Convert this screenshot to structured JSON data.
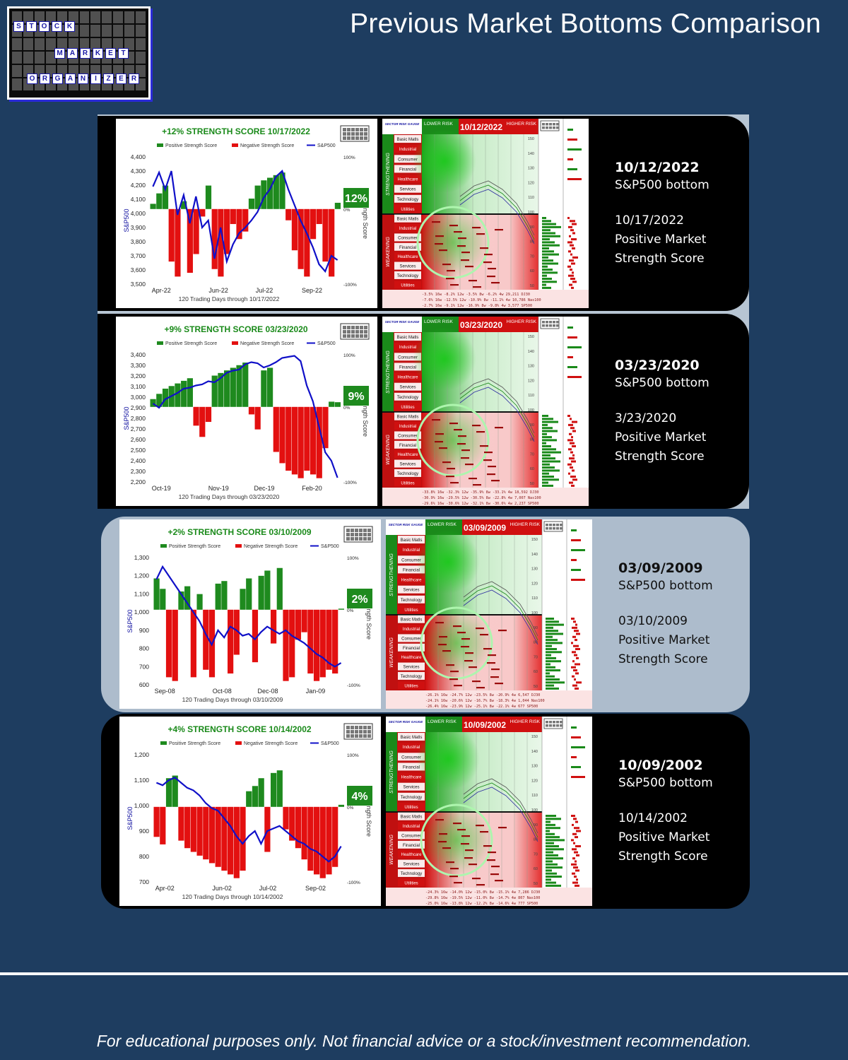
{
  "header": {
    "title": "Previous Market Bottoms Comparison"
  },
  "logo": {
    "words": [
      "STOCK",
      "MARKET",
      "ORGANIZER"
    ]
  },
  "colors": {
    "positive": "#1e8a1e",
    "negative": "#e31010",
    "line": "#1010c8",
    "title_green": "#1a8a1a",
    "background": "#1e3d60"
  },
  "panels": [
    {
      "theme": "dark",
      "bottom_date": "10/12/2022",
      "bottom_label": "S&P500 bottom",
      "score_date": "10/17/2022",
      "score_line1": "Positive Market",
      "score_line2": "Strength Score",
      "chart_data": {
        "type": "bar+line",
        "title": "+12% STRENGTH SCORE 10/17/2022",
        "legend": [
          "Positive Strength Score",
          "Negative Strength Score",
          "S&P500"
        ],
        "xlabel": "120 Trading Days through 10/17/2022",
        "ylabel": "S&P500",
        "y2label": "Strength Score",
        "y_ticks": [
          "4,400",
          "4,300",
          "4,200",
          "4,100",
          "4,000",
          "3,900",
          "3,800",
          "3,700",
          "3,600",
          "3,500"
        ],
        "ylim": [
          3500,
          4400
        ],
        "y2_ticks": [
          "100%",
          "0%",
          "-100%"
        ],
        "x_ticks": [
          "Apr-22",
          "Jun-22",
          "Jul-22",
          "Sep-22"
        ],
        "badge": "12%",
        "sp500": [
          4190,
          4290,
          4170,
          4300,
          3990,
          4130,
          3930,
          4120,
          3900,
          3950,
          3680,
          3900,
          3660,
          3780,
          3860,
          3900,
          3950,
          4010,
          4110,
          4170,
          4260,
          4300,
          4170,
          4060,
          3950,
          3860,
          3760,
          3640,
          3590,
          3700,
          3670
        ],
        "strength": [
          10,
          30,
          45,
          -70,
          -90,
          15,
          -85,
          -60,
          -10,
          45,
          -80,
          -90,
          -60,
          -20,
          -40,
          -30,
          20,
          45,
          55,
          60,
          65,
          70,
          -15,
          -55,
          -80,
          -90,
          -40,
          -20,
          -70,
          -90,
          12
        ]
      },
      "gauge": {
        "date": "10/12/2022",
        "lower": "LOWER RISK",
        "higher": "HIGHER RISK",
        "gauge_title": "SECTOR RISK GAUGE",
        "strengthening": "STRENGTHENING",
        "weakening": "WEAKENING",
        "sectors": [
          "Basic Matls",
          "Industrial",
          "Consumer",
          "Financial",
          "Healthcare",
          "Services",
          "Technology",
          "Utilities"
        ],
        "right_ticks": [
          "150",
          "140",
          "130",
          "120",
          "110",
          "100",
          "90",
          "80",
          "70",
          "60",
          "50"
        ],
        "footer_rows": [
          "-3.5% 16w  -8.2% 12w  -3.5% 8w  -6.2% 4w  29,211 DJ30",
          "-7.6% 16w  -12.5% 12w  -10.9% 8w  -11.1% 4w  10,786 Nas100",
          "-2.7% 16w  -9.1% 12w  -16.9% 8w  -9.8% 4w  3,577 SP500"
        ]
      }
    },
    {
      "theme": "dark",
      "bottom_date": "03/23/2020",
      "bottom_label": "S&P500 bottom",
      "score_date": "3/23/2020",
      "score_line1": "Positive Market",
      "score_line2": "Strength Score",
      "chart_data": {
        "type": "bar+line",
        "title": "+9% STRENGTH SCORE 03/23/2020",
        "legend": [
          "Positive Strength Score",
          "Negative Strength Score",
          "S&P500"
        ],
        "xlabel": "120 Trading Days through 03/23/2020",
        "ylabel": "S&P500",
        "y2label": "Strength Score",
        "y_ticks": [
          "3,400",
          "3,300",
          "3,200",
          "3,100",
          "3,000",
          "2,900",
          "2,800",
          "2,700",
          "2,600",
          "2,500",
          "2,400",
          "2,300",
          "2,200"
        ],
        "ylim": [
          2200,
          3400
        ],
        "y2_ticks": [
          "100%",
          "0%",
          "-100%"
        ],
        "x_ticks": [
          "Oct-19",
          "Nov-19",
          "Dec-19",
          "Feb-20"
        ],
        "badge": "9%",
        "sp500": [
          2940,
          2900,
          2980,
          3010,
          3040,
          3080,
          3090,
          3110,
          3120,
          3150,
          3140,
          3180,
          3230,
          3250,
          3260,
          3310,
          3330,
          3320,
          3280,
          3300,
          3330,
          3370,
          3380,
          3390,
          3340,
          3110,
          2960,
          2720,
          2480,
          2400,
          2240
        ],
        "strength": [
          15,
          25,
          35,
          40,
          45,
          50,
          55,
          -25,
          -40,
          -20,
          60,
          65,
          70,
          75,
          80,
          85,
          -10,
          -30,
          70,
          75,
          -60,
          -75,
          -85,
          -90,
          -95,
          -85,
          -90,
          -95,
          -55,
          10,
          9
        ]
      },
      "gauge": {
        "date": "03/23/2020",
        "lower": "LOWER RISK",
        "higher": "HIGHER RISK",
        "gauge_title": "SECTOR RISK GAUGE",
        "strengthening": "STRENGTHENING",
        "weakening": "WEAKENING",
        "sectors": [
          "Basic Matls",
          "Industrial",
          "Consumer",
          "Financial",
          "Healthcare",
          "Services",
          "Technology",
          "Utilities"
        ],
        "right_ticks": [
          "150",
          "140",
          "130",
          "120",
          "110",
          "100",
          "90",
          "80",
          "70",
          "60",
          "50"
        ],
        "footer_rows": [
          "-33.8% 16w  -32.3% 12w  -35.9% 8w  -33.1% 4w  18,592 DJ30",
          "-30.9% 16w  -29.5% 12w  -30.5% 8w  -22.8% 4w  7,007 Nas100",
          "-29.6% 16w  -30.6% 12w  -32.1% 8w  -30.6% 4w  2,237 SP500"
        ]
      }
    },
    {
      "theme": "light",
      "bottom_date": "03/09/2009",
      "bottom_label": "S&P500 bottom",
      "score_date": "03/10/2009",
      "score_line1": "Positive Market",
      "score_line2": "Strength Score",
      "chart_data": {
        "type": "bar+line",
        "title": "+2% STRENGTH SCORE 03/10/2009",
        "legend": [
          "Positive Strength Score",
          "Negative Strength Score",
          "S&P500"
        ],
        "xlabel": "120 Trading Days through 03/10/2009",
        "ylabel": "S&P500",
        "y2label": "Strength Score",
        "y_ticks": [
          "1,300",
          "1,200",
          "1,100",
          "1,000",
          "900",
          "800",
          "700",
          "600"
        ],
        "ylim": [
          600,
          1300
        ],
        "y2_ticks": [
          "100%",
          "0%",
          "-100%"
        ],
        "x_ticks": [
          "Sep-08",
          "Oct-08",
          "Dec-08",
          "Jan-09"
        ],
        "badge": "2%",
        "sp500": [
          1180,
          1250,
          1200,
          1150,
          1100,
          1050,
          1000,
          950,
          880,
          820,
          900,
          860,
          920,
          900,
          870,
          880,
          850,
          890,
          920,
          900,
          880,
          900,
          870,
          850,
          830,
          800,
          770,
          750,
          720,
          700,
          720
        ],
        "strength": [
          60,
          40,
          -90,
          -95,
          35,
          45,
          -90,
          30,
          -80,
          -90,
          50,
          55,
          -85,
          -60,
          40,
          60,
          -70,
          65,
          75,
          -45,
          80,
          -95,
          -90,
          -40,
          -30,
          -85,
          -95,
          -90,
          -80,
          -85,
          2
        ]
      },
      "gauge": {
        "date": "03/09/2009",
        "lower": "LOWER RISK",
        "higher": "HIGHER RISK",
        "gauge_title": "SECTOR RISK GAUGE",
        "strengthening": "STRENGTHENING",
        "weakening": "WEAKENING",
        "sectors": [
          "Basic Matls",
          "Industrial",
          "Consumer",
          "Financial",
          "Healthcare",
          "Services",
          "Technology",
          "Utilities"
        ],
        "right_ticks": [
          "150",
          "140",
          "130",
          "120",
          "110",
          "100",
          "90",
          "80",
          "70",
          "60",
          "50"
        ],
        "footer_rows": [
          "-26.1% 16w  -24.7% 12w  -23.5% 8w  -20.9% 4w  6,547 DJ30",
          "-24.1% 16w  -20.6% 12w  -16.7% 8w  -18.3% 4w  1,044 Nas100",
          "-26.4% 16w  -23.9% 12w  -25.1% 8w  -22.1% 4w  677 SP500"
        ]
      }
    },
    {
      "theme": "dark",
      "bottom_date": "10/09/2002",
      "bottom_label": "S&P500 bottom",
      "score_date": "10/14/2002",
      "score_line1": "Positive Market",
      "score_line2": "Strength Score",
      "chart_data": {
        "type": "bar+line",
        "title": "+4% STRENGTH SCORE 10/14/2002",
        "legend": [
          "Positive Strength Score",
          "Negative Strength Score",
          "S&P500"
        ],
        "xlabel": "120 Trading Days through 10/14/2002",
        "ylabel": "S&P500",
        "y2label": "Strength Score",
        "y_ticks": [
          "1,200",
          "1,100",
          "1,000",
          "900",
          "800",
          "700"
        ],
        "ylim": [
          700,
          1200
        ],
        "y2_ticks": [
          "100%",
          "0%",
          "-100%"
        ],
        "x_ticks": [
          "Apr-02",
          "Jun-02",
          "Jul-02",
          "Sep-02"
        ],
        "badge": "4%",
        "sp500": [
          1090,
          1080,
          1100,
          1110,
          1090,
          1070,
          1060,
          1040,
          1010,
          990,
          980,
          950,
          920,
          880,
          850,
          880,
          900,
          850,
          900,
          910,
          920,
          900,
          880,
          860,
          850,
          830,
          820,
          800,
          780,
          800,
          840
        ],
        "strength": [
          -40,
          -50,
          55,
          60,
          -45,
          -55,
          -60,
          -65,
          -70,
          -75,
          -80,
          -85,
          -90,
          -95,
          -85,
          30,
          40,
          55,
          -60,
          65,
          70,
          -30,
          -45,
          -55,
          -70,
          -85,
          -90,
          -95,
          -90,
          -80,
          4
        ]
      },
      "gauge": {
        "date": "10/09/2002",
        "lower": "LOWER RISK",
        "higher": "HIGHER RISK",
        "gauge_title": "SECTOR RISK GAUGE",
        "strengthening": "STRENGTHENING",
        "weakening": "WEAKENING",
        "sectors": [
          "Basic Matls",
          "Industrial",
          "Consumer",
          "Financial",
          "Healthcare",
          "Services",
          "Technology",
          "Utilities"
        ],
        "right_ticks": [
          "150",
          "140",
          "130",
          "120",
          "110",
          "100",
          "90",
          "80",
          "70",
          "60",
          "50"
        ],
        "footer_rows": [
          "-24.3% 16w  -14.0% 12w  -15.0% 8w  -15.1% 4w  7,286 DJ30",
          "-29.8% 16w  -19.5% 12w  -11.0% 8w  -14.7% 4w  807 Nas100",
          "-25.0% 16w  -13.8% 12w  -12.2% 8w  -14.6% 4w  777 SP500"
        ]
      }
    }
  ],
  "footer": {
    "disclaimer": "For educational purposes only. Not financial advice or a stock/investment recommendation."
  }
}
